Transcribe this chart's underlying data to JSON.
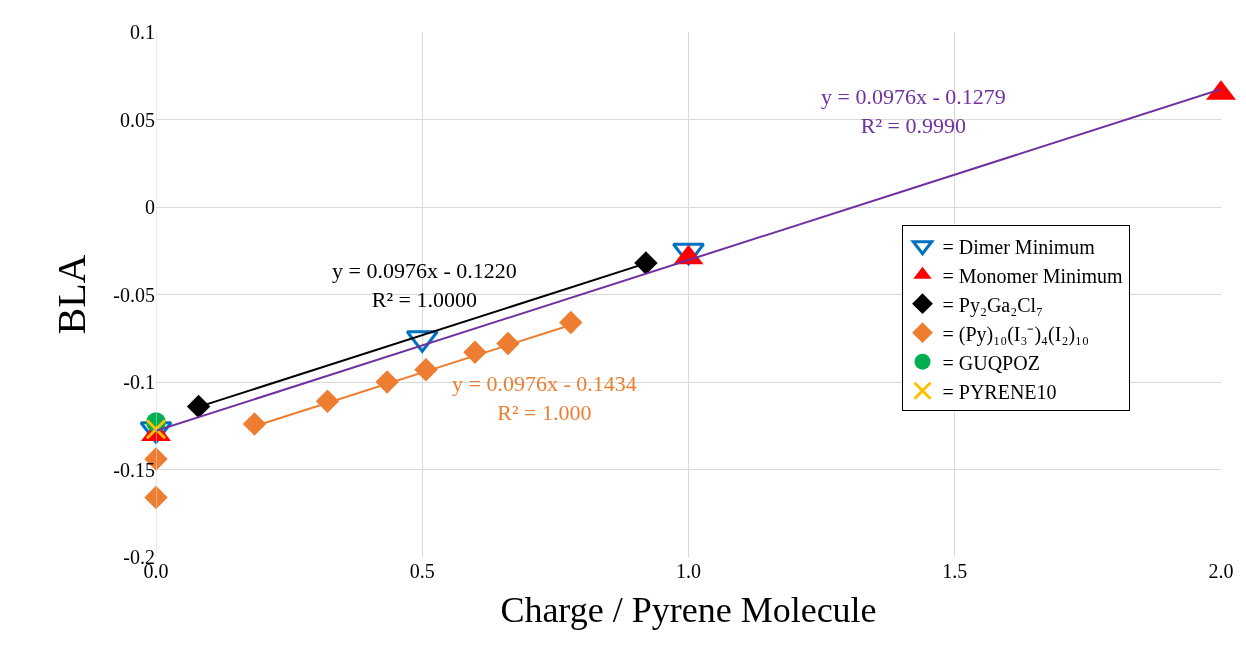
{
  "chart_data": {
    "type": "scatter",
    "xlabel": "Charge / Pyrene Molecule",
    "ylabel": "BLA",
    "xlim": [
      0,
      2
    ],
    "xticks": [
      {
        "value": 0,
        "label": "0.0"
      },
      {
        "value": 0.5,
        "label": "0.5"
      },
      {
        "value": 1,
        "label": "1.0"
      },
      {
        "value": 1.5,
        "label": "1.5"
      },
      {
        "value": 2,
        "label": "2.0"
      }
    ],
    "ylim": [
      -0.2,
      0.1
    ],
    "yticks": [
      -0.2,
      -0.15,
      -0.1,
      -0.05,
      0,
      0.05,
      0.1
    ],
    "grid": true,
    "legend": "right",
    "series": [
      {
        "type": "line",
        "color": "#7030a0",
        "x": [
          0,
          2
        ],
        "values": [
          -0.1279,
          0.0673
        ],
        "marker": "none",
        "line_style": "solid"
      },
      {
        "type": "line",
        "color": "#000000",
        "x": [
          0.08,
          0.92
        ],
        "values": [
          -0.1142,
          -0.0322
        ],
        "marker": "none",
        "line_style": "solid"
      },
      {
        "type": "line",
        "color": "#ed7d31",
        "x": [
          0.185,
          0.779
        ],
        "values": [
          -0.1253,
          -0.0674
        ],
        "marker": "none",
        "line_style": "solid"
      },
      {
        "name": "= Dimer Minimum",
        "color": "#0070c0",
        "marker": "triangle-down-open",
        "x": [
          0,
          0.5,
          1
        ],
        "values": [
          -0.127,
          -0.075,
          -0.025
        ]
      },
      {
        "name": "= Monomer Minimum",
        "color": "#ff0000",
        "marker": "triangle",
        "x": [
          0,
          1,
          2
        ],
        "values": [
          -0.13,
          -0.029,
          0.065
        ]
      },
      {
        "name": "= Py₂Ga₂Cl₇",
        "color": "#000000",
        "marker": "diamond",
        "x": [
          0.08,
          0.92
        ],
        "values": [
          -0.114,
          -0.032
        ]
      },
      {
        "name": "= (Py)₁₀(I₃⁻)₄(I₂)₁₀",
        "color": "#ed7d31",
        "marker": "diamond",
        "x": [
          0,
          0,
          0.185,
          0.322,
          0.434,
          0.507,
          0.599,
          0.661,
          0.779
        ],
        "values": [
          -0.144,
          -0.166,
          -0.124,
          -0.111,
          -0.1,
          -0.093,
          -0.083,
          -0.078,
          -0.066
        ]
      },
      {
        "name": "= GUQPOZ",
        "color": "#00b050",
        "marker": "circle",
        "x": [
          0
        ],
        "values": [
          -0.123
        ]
      },
      {
        "name": "= PYRENE10",
        "color": "#ffc000",
        "marker": "cross",
        "x": [
          0
        ],
        "values": [
          -0.127
        ]
      }
    ],
    "annotations": [
      "y = 0.0976x - 0.1279\nR² = 0.9990",
      "y = 0.0976x - 0.1220\nR² = 1.0000",
      "y = 0.0976x - 0.1434\nR² = 1.000"
    ]
  }
}
